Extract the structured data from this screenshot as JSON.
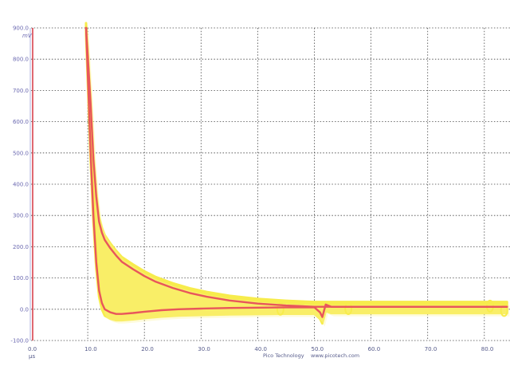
{
  "chart_data": {
    "type": "line",
    "title": "",
    "y_unit": "mV",
    "x_unit": "µs",
    "xlim": [
      0,
      84
    ],
    "ylim": [
      -100,
      900
    ],
    "grid": true,
    "x_ticks": [
      "0.0",
      "10.0",
      "20.0",
      "30.0",
      "40.0",
      "50.0",
      "60.0",
      "70.0",
      "80.0"
    ],
    "y_ticks": [
      "900.0",
      "800.0",
      "700.0",
      "600.0",
      "500.0",
      "400.0",
      "300.0",
      "200.0",
      "100.0",
      "0.0",
      "-100.0"
    ],
    "colors": {
      "envelope": "#f7ec4c",
      "trace": "#e8565b",
      "axis": "#d8424e",
      "grid": "#444444",
      "tick_text": "#6a68b0"
    },
    "series": [
      {
        "x": [
          9.7,
          10.5,
          11.0,
          11.5,
          12.0,
          12.5,
          13.0,
          14.0,
          15.0,
          16.0,
          18.0,
          20.0,
          22.0,
          25.0,
          28.0,
          31.0,
          35.0,
          40.0,
          45.0,
          50.0,
          55.0,
          60.0,
          70.0,
          84.0
        ],
        "y": [
          900,
          660,
          480,
          360,
          280,
          245,
          222,
          195,
          172,
          152,
          128,
          106,
          88,
          68,
          52,
          40,
          28,
          18,
          12,
          8,
          8,
          8,
          8,
          8
        ]
      },
      {
        "x": [
          9.7,
          10.5,
          11.0,
          11.5,
          12.0,
          12.5,
          13.0,
          14.0,
          15.0,
          16.0,
          18.0,
          20.0,
          23.0,
          26.0,
          30.0,
          35.0,
          40.0,
          45.0,
          50.0,
          51.0,
          51.4,
          52.0,
          53.0,
          55.0,
          60.0,
          70.0,
          84.0
        ],
        "y": [
          900,
          500,
          300,
          150,
          60,
          20,
          0,
          -10,
          -15,
          -15,
          -12,
          -8,
          -3,
          0,
          2,
          4,
          5,
          6,
          6,
          -10,
          -25,
          15,
          8,
          8,
          8,
          8,
          8
        ]
      }
    ],
    "footer": {
      "brand": "Pico Technology",
      "url": "www.picotech.com"
    }
  }
}
